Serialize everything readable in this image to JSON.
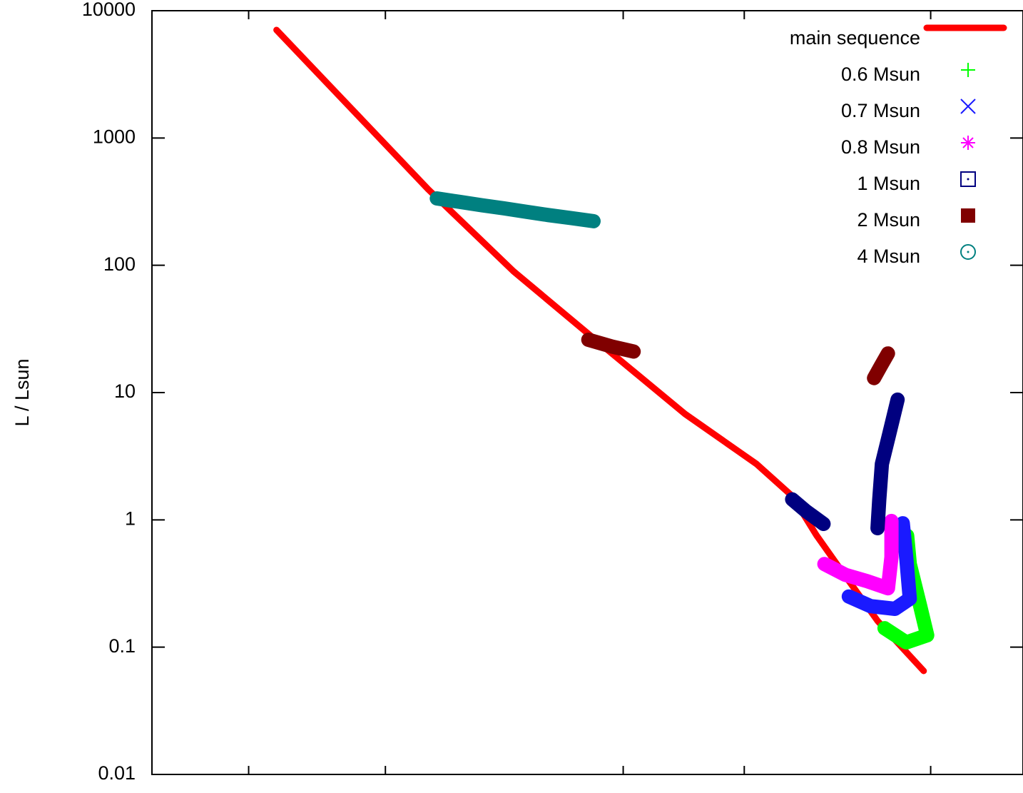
{
  "chart_data": {
    "type": "line",
    "ylabel": "L / Lsun",
    "ylog": true,
    "xlim": [
      0,
      100
    ],
    "xticks": [
      11.1,
      26.8,
      54.1,
      68.0,
      89.4
    ],
    "ylim": [
      0.01,
      10000
    ],
    "yticks": [
      0.01,
      0.1,
      1,
      10,
      100,
      1000,
      10000
    ],
    "grid": false,
    "legend": "top-right",
    "series": [
      {
        "name": "main sequence",
        "color": "#ff0000",
        "marker": "line",
        "x": [
          14.3,
          31.7,
          41.5,
          51.3,
          61.2,
          69.4,
          73.5,
          76.3,
          79.2,
          83.3,
          88.6
        ],
        "values": [
          7060,
          396,
          89.8,
          24.7,
          6.79,
          2.75,
          1.54,
          0.755,
          0.396,
          0.161,
          0.065
        ]
      },
      {
        "name": "0.6 Msun",
        "color": "#00ff00",
        "marker": "plus",
        "x": [
          84.1,
          86.6,
          89.0,
          88.2,
          87.0,
          86.7
        ],
        "values": [
          0.141,
          0.109,
          0.124,
          0.21,
          0.45,
          0.75
        ]
      },
      {
        "name": "0.7 Msun",
        "color": "#1a1aff",
        "marker": "cross",
        "x": [
          80.0,
          82.5,
          85.3,
          87.0,
          86.6,
          86.2
        ],
        "values": [
          0.25,
          0.21,
          0.2,
          0.24,
          0.5,
          0.94
        ]
      },
      {
        "name": "0.8 Msun",
        "color": "#ff00ff",
        "marker": "star",
        "x": [
          77.2,
          79.6,
          82.1,
          84.5,
          84.9,
          84.9
        ],
        "values": [
          0.45,
          0.37,
          0.33,
          0.29,
          0.51,
          0.98
        ]
      },
      {
        "name": "1 Msun",
        "color": "#000080",
        "marker": "open-square",
        "x": [
          73.5,
          75.1,
          77.1,
          null,
          83.3,
          83.5,
          83.8,
          84.6,
          85.6
        ],
        "values": [
          1.45,
          1.17,
          0.93,
          null,
          0.86,
          1.44,
          2.75,
          4.6,
          8.8
        ]
      },
      {
        "name": "2 Msun",
        "color": "#800000",
        "marker": "filled-square",
        "x": [
          50.1,
          52.8,
          55.3,
          null,
          84.5,
          83.7,
          82.9
        ],
        "values": [
          26,
          23,
          21,
          null,
          20.3,
          16.3,
          13.0
        ]
      },
      {
        "name": "4 Msun",
        "color": "#008080",
        "marker": "open-circle",
        "x": [
          32.7,
          35.3,
          37.9,
          40.4,
          43.0,
          45.5,
          48.1,
          50.7
        ],
        "values": [
          335,
          315,
          296,
          280,
          263,
          248,
          235,
          222
        ]
      }
    ]
  }
}
